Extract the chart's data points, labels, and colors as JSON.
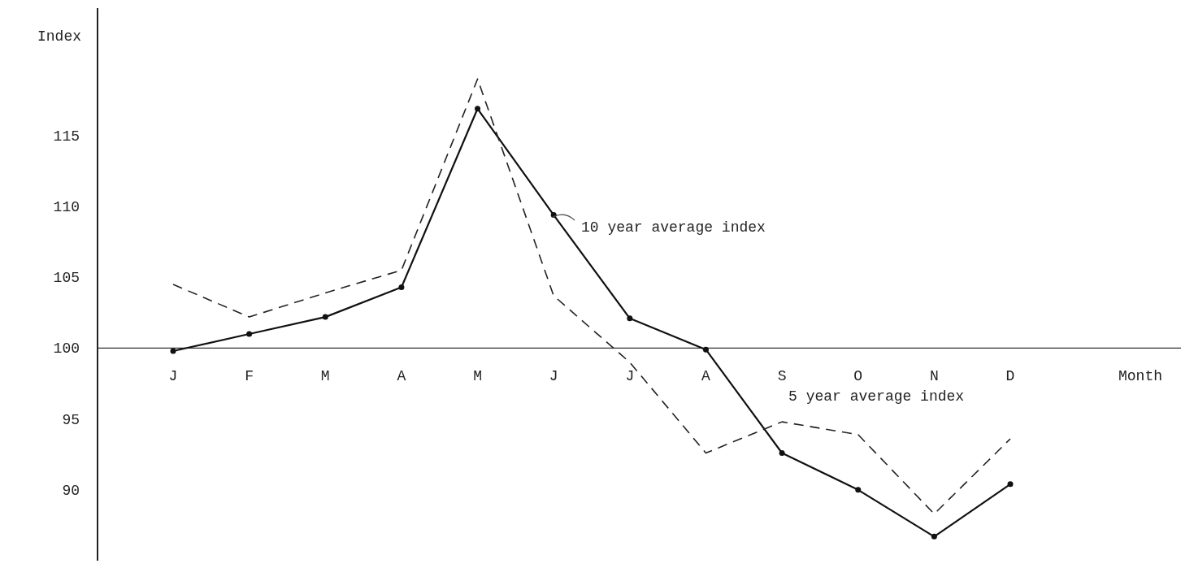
{
  "chart_data": {
    "type": "line",
    "ylabel": "Index",
    "xlabel": "Month",
    "categories": [
      "J",
      "F",
      "M",
      "A",
      "M",
      "J",
      "J",
      "A",
      "S",
      "O",
      "N",
      "D"
    ],
    "ylim": [
      85,
      124
    ],
    "yticks": [
      90,
      95,
      100,
      105,
      110,
      115
    ],
    "grid": false,
    "series": [
      {
        "name": "10 year average index",
        "color": "#111111",
        "line_style": "solid",
        "marker": "circle",
        "values": [
          99.8,
          101.0,
          102.2,
          104.3,
          116.9,
          109.4,
          102.1,
          99.9,
          92.6,
          90.0,
          86.7,
          90.4
        ]
      },
      {
        "name": "5 year average index",
        "color": "#222222",
        "line_style": "dashed",
        "marker": "none",
        "values": [
          104.5,
          102.2,
          103.9,
          105.5,
          119.0,
          103.7,
          99.0,
          92.6,
          94.8,
          93.9,
          88.3,
          93.6
        ]
      }
    ]
  }
}
